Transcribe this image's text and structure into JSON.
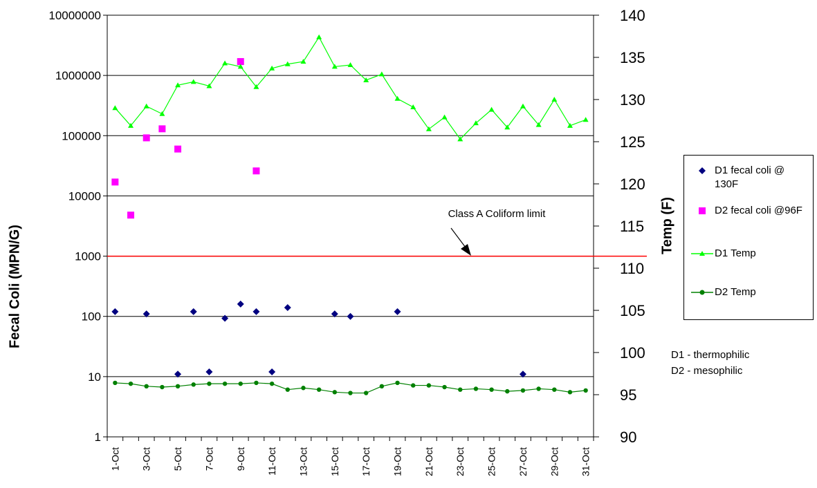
{
  "chart_data": {
    "type": "line",
    "x_categories": [
      "1-Oct",
      "2-Oct",
      "3-Oct",
      "4-Oct",
      "5-Oct",
      "6-Oct",
      "7-Oct",
      "8-Oct",
      "9-Oct",
      "10-Oct",
      "11-Oct",
      "12-Oct",
      "13-Oct",
      "14-Oct",
      "15-Oct",
      "16-Oct",
      "17-Oct",
      "18-Oct",
      "19-Oct",
      "20-Oct",
      "21-Oct",
      "22-Oct",
      "23-Oct",
      "24-Oct",
      "25-Oct",
      "26-Oct",
      "27-Oct",
      "28-Oct",
      "29-Oct",
      "30-Oct",
      "31-Oct"
    ],
    "x_tick_labels": [
      "1-Oct",
      "3-Oct",
      "5-Oct",
      "7-Oct",
      "9-Oct",
      "11-Oct",
      "13-Oct",
      "15-Oct",
      "17-Oct",
      "19-Oct",
      "21-Oct",
      "23-Oct",
      "25-Oct",
      "27-Oct",
      "29-Oct",
      "31-Oct"
    ],
    "y_left": {
      "label": "Fecal Coli (MPN/G)",
      "scale": "log",
      "range": [
        1,
        10000000
      ],
      "ticks": [
        "1",
        "10",
        "100",
        "1000",
        "10000",
        "100000",
        "1000000",
        "10000000"
      ]
    },
    "y_right": {
      "label": "Temp (F)",
      "range": [
        90,
        140
      ],
      "ticks": [
        "90",
        "95",
        "100",
        "105",
        "110",
        "115",
        "120",
        "125",
        "130",
        "135",
        "140"
      ]
    },
    "series": [
      {
        "name": "D1 fecal coli @ 130F",
        "axis": "left",
        "marker": "diamond",
        "color": "#000080",
        "line": false,
        "points": [
          {
            "x": "1-Oct",
            "y": 120
          },
          {
            "x": "3-Oct",
            "y": 110
          },
          {
            "x": "5-Oct",
            "y": 11
          },
          {
            "x": "6-Oct",
            "y": 120
          },
          {
            "x": "7-Oct",
            "y": 12
          },
          {
            "x": "8-Oct",
            "y": 93
          },
          {
            "x": "9-Oct",
            "y": 160
          },
          {
            "x": "10-Oct",
            "y": 120
          },
          {
            "x": "11-Oct",
            "y": 12
          },
          {
            "x": "12-Oct",
            "y": 140
          },
          {
            "x": "15-Oct",
            "y": 110
          },
          {
            "x": "16-Oct",
            "y": 100
          },
          {
            "x": "19-Oct",
            "y": 120
          },
          {
            "x": "27-Oct",
            "y": 11
          }
        ]
      },
      {
        "name": "D2 fecal coli @96F",
        "axis": "left",
        "marker": "square",
        "color": "#ff00ff",
        "line": false,
        "points": [
          {
            "x": "1-Oct",
            "y": 17000
          },
          {
            "x": "2-Oct",
            "y": 4800
          },
          {
            "x": "3-Oct",
            "y": 92000
          },
          {
            "x": "4-Oct",
            "y": 130000
          },
          {
            "x": "5-Oct",
            "y": 60000
          },
          {
            "x": "9-Oct",
            "y": 1700000
          },
          {
            "x": "10-Oct",
            "y": 26000
          }
        ]
      },
      {
        "name": "D1 Temp",
        "axis": "right",
        "marker": "triangle",
        "color": "#00ff00",
        "line": true,
        "values": [
          129,
          126.9,
          129.2,
          128.3,
          131.7,
          132.1,
          131.6,
          134.3,
          133.9,
          131.5,
          133.7,
          134.2,
          134.5,
          137.4,
          133.9,
          134.1,
          132.3,
          133.0,
          130.1,
          129.1,
          126.5,
          127.9,
          125.3,
          127.2,
          128.8,
          126.7,
          129.2,
          127.0,
          130.0,
          126.9,
          127.6
        ]
      },
      {
        "name": "D2 Temp",
        "axis": "right",
        "marker": "circle",
        "color": "#008000",
        "line": true,
        "values": [
          96.4,
          96.3,
          96.0,
          95.9,
          96.0,
          96.2,
          96.3,
          96.3,
          96.3,
          96.4,
          96.3,
          95.6,
          95.8,
          95.6,
          95.3,
          95.2,
          95.2,
          96.0,
          96.4,
          96.1,
          96.1,
          95.9,
          95.6,
          95.7,
          95.6,
          95.4,
          95.5,
          95.7,
          95.6,
          95.3,
          95.5
        ]
      }
    ],
    "reference_line": {
      "label": "Class A Coliform limit",
      "value": 1000,
      "axis": "left",
      "color": "#ff0000"
    },
    "grid": {
      "horizontal": true,
      "vertical": false
    },
    "legend": {
      "position": "right"
    },
    "notes": [
      "D1 - thermophilic",
      "D2 - mesophilic"
    ]
  }
}
